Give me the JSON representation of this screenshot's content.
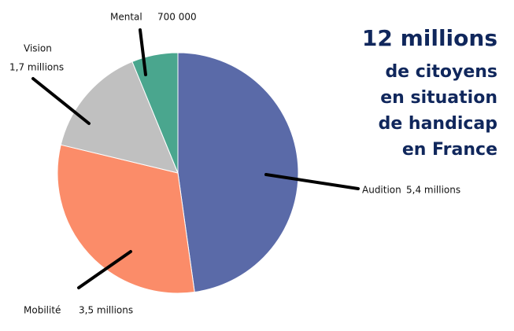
{
  "chart_data": {
    "type": "pie",
    "title_lines": [
      "12 millions",
      "de citoyens",
      "en situation",
      "de handicap",
      "en France"
    ],
    "categories": [
      "Audition",
      "Mobilité",
      "Vision",
      "Mental"
    ],
    "values": [
      5400000,
      3500000,
      1700000,
      700000
    ],
    "value_labels": [
      "5,4 millions",
      "3,5 millions",
      "1,7 millions",
      "700 000"
    ],
    "colors": [
      "#5a6aa8",
      "#fb8c69",
      "#c0c0c0",
      "#4aa68e"
    ]
  }
}
